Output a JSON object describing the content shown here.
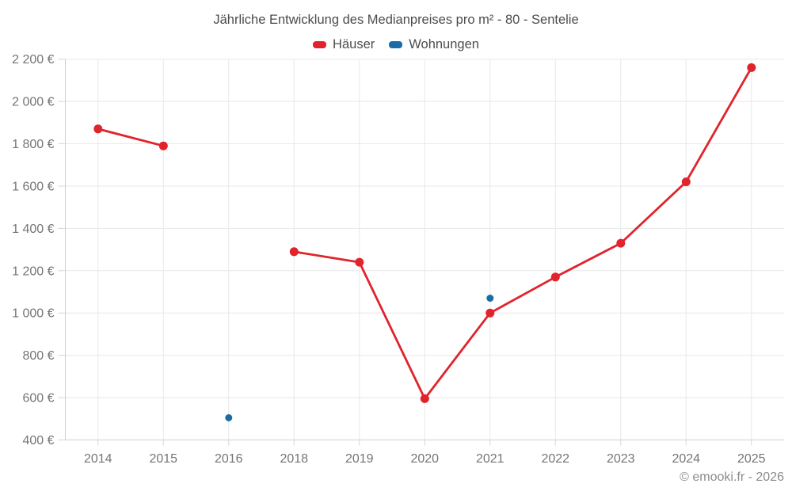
{
  "title": "Jährliche Entwicklung des Medianpreises pro m² - 80 - Sentelie",
  "footer": "© emooki.fr - 2026",
  "chart_data": {
    "type": "line",
    "title": "Jährliche Entwicklung des Medianpreises pro m² - 80 - Sentelie",
    "categories": [
      "2014",
      "2015",
      "2016",
      "2018",
      "2019",
      "2020",
      "2021",
      "2022",
      "2023",
      "2024",
      "2025"
    ],
    "series": [
      {
        "name": "Häuser",
        "color": "#e1232b",
        "values": [
          1870,
          1790,
          null,
          1290,
          1240,
          595,
          1000,
          1170,
          1330,
          1620,
          2160
        ]
      },
      {
        "name": "Wohnungen",
        "color": "#1a6ba6",
        "values": [
          null,
          null,
          505,
          null,
          null,
          null,
          1070,
          null,
          null,
          null,
          null
        ]
      }
    ],
    "ylim": [
      400,
      2200
    ],
    "yticks": [
      400,
      600,
      800,
      1000,
      1200,
      1400,
      1600,
      1800,
      2000,
      2200
    ],
    "ytick_labels": [
      "400 €",
      "600 €",
      "800 €",
      "1 000 €",
      "1 200 €",
      "1 400 €",
      "1 600 €",
      "1 800 €",
      "2 000 €",
      "2 200 €"
    ],
    "xlabel": "",
    "ylabel": "",
    "grid": true,
    "legend_position": "top"
  }
}
